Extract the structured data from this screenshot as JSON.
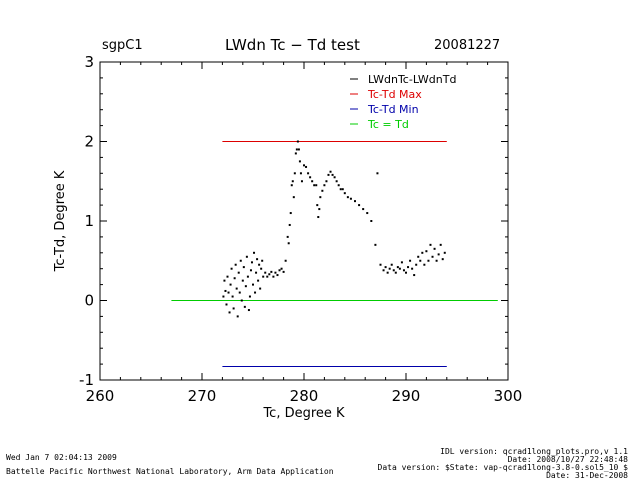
{
  "header": {
    "site": "sgpC1",
    "title": "LWdn Tc − Td test",
    "date": "20081227"
  },
  "footer": {
    "run_time": "Wed Jan  7 02:04:13 2009",
    "institution": "Battelle Pacific Northwest National Laboratory, Arm Data Application",
    "idl_line": "IDL version: qcrad1long_plots.pro,v 1.1",
    "date_line1": "Date: 2008/10/27 22:48:48",
    "data_version": "Data version: $State: vap-qcrad1long-3.8-0.sol5_10 $",
    "date_line2": "Date: 31-Dec-2008"
  },
  "chart_data": {
    "type": "scatter",
    "xlabel": "Tc, Degree K",
    "ylabel": "Tc-Td, Degree K",
    "xlim": [
      260,
      300
    ],
    "ylim": [
      -1,
      3
    ],
    "xticks": [
      260,
      270,
      280,
      290,
      300
    ],
    "yticks": [
      -1,
      0,
      1,
      2,
      3
    ],
    "grid": false,
    "legend_position": "top-right",
    "legend": [
      {
        "label": "LWdnTc-LWdnTd",
        "color": "#000000"
      },
      {
        "label": "Tc-Td Max",
        "color": "#dd0000"
      },
      {
        "label": "Tc-Td Min",
        "color": "#0000aa"
      },
      {
        "label": "Tc = Td",
        "color": "#00cc00"
      }
    ],
    "lines": [
      {
        "name": "Tc-Td Max",
        "color": "#dd0000",
        "x": [
          272,
          294
        ],
        "y": [
          2.0,
          2.0
        ]
      },
      {
        "name": "Tc-Td Min",
        "color": "#0000aa",
        "x": [
          272,
          294
        ],
        "y": [
          -0.83,
          -0.83
        ]
      },
      {
        "name": "Tc = Td",
        "color": "#00cc00",
        "x": [
          267,
          299
        ],
        "y": [
          0.0,
          0.0
        ]
      }
    ],
    "scatter": {
      "name": "LWdnTc-LWdnTd",
      "color": "#000000",
      "points": [
        [
          272.1,
          0.05
        ],
        [
          272.2,
          0.25
        ],
        [
          272.3,
          0.12
        ],
        [
          272.4,
          -0.05
        ],
        [
          272.5,
          0.3
        ],
        [
          272.6,
          0.1
        ],
        [
          272.7,
          -0.15
        ],
        [
          272.8,
          0.2
        ],
        [
          272.9,
          0.4
        ],
        [
          273.0,
          0.05
        ],
        [
          273.1,
          -0.1
        ],
        [
          273.2,
          0.28
        ],
        [
          273.3,
          0.45
        ],
        [
          273.4,
          0.15
        ],
        [
          273.5,
          -0.2
        ],
        [
          273.6,
          0.35
        ],
        [
          273.7,
          0.1
        ],
        [
          273.8,
          0.5
        ],
        [
          273.9,
          0.0
        ],
        [
          274.0,
          0.25
        ],
        [
          274.1,
          0.42
        ],
        [
          274.2,
          -0.08
        ],
        [
          274.3,
          0.18
        ],
        [
          274.4,
          0.55
        ],
        [
          274.5,
          0.3
        ],
        [
          274.6,
          -0.12
        ],
        [
          274.7,
          0.05
        ],
        [
          274.8,
          0.38
        ],
        [
          274.9,
          0.48
        ],
        [
          275.0,
          0.2
        ],
        [
          275.1,
          0.6
        ],
        [
          275.2,
          0.1
        ],
        [
          275.3,
          0.35
        ],
        [
          275.4,
          0.52
        ],
        [
          275.5,
          0.25
        ],
        [
          275.6,
          0.45
        ],
        [
          275.7,
          0.15
        ],
        [
          275.8,
          0.4
        ],
        [
          275.9,
          0.5
        ],
        [
          276.0,
          0.3
        ],
        [
          276.2,
          0.35
        ],
        [
          276.4,
          0.3
        ],
        [
          276.6,
          0.33
        ],
        [
          276.8,
          0.36
        ],
        [
          277.0,
          0.3
        ],
        [
          277.2,
          0.35
        ],
        [
          277.4,
          0.32
        ],
        [
          277.6,
          0.38
        ],
        [
          277.8,
          0.4
        ],
        [
          278.0,
          0.36
        ],
        [
          278.2,
          0.5
        ],
        [
          278.4,
          0.8
        ],
        [
          278.5,
          0.72
        ],
        [
          278.6,
          0.95
        ],
        [
          278.7,
          1.1
        ],
        [
          278.8,
          1.45
        ],
        [
          278.9,
          1.5
        ],
        [
          279.0,
          1.3
        ],
        [
          279.1,
          1.6
        ],
        [
          279.2,
          1.85
        ],
        [
          279.3,
          1.9
        ],
        [
          279.4,
          2.0
        ],
        [
          279.5,
          1.9
        ],
        [
          279.6,
          1.75
        ],
        [
          279.7,
          1.6
        ],
        [
          279.8,
          1.5
        ],
        [
          280.0,
          1.7
        ],
        [
          280.2,
          1.68
        ],
        [
          280.4,
          1.6
        ],
        [
          280.6,
          1.55
        ],
        [
          280.8,
          1.5
        ],
        [
          281.0,
          1.45
        ],
        [
          281.2,
          1.45
        ],
        [
          281.3,
          1.2
        ],
        [
          281.4,
          1.05
        ],
        [
          281.5,
          1.15
        ],
        [
          281.6,
          1.3
        ],
        [
          281.8,
          1.38
        ],
        [
          282.0,
          1.45
        ],
        [
          282.2,
          1.5
        ],
        [
          282.4,
          1.58
        ],
        [
          282.6,
          1.62
        ],
        [
          282.8,
          1.58
        ],
        [
          283.0,
          1.55
        ],
        [
          283.2,
          1.5
        ],
        [
          283.4,
          1.45
        ],
        [
          283.6,
          1.4
        ],
        [
          283.8,
          1.4
        ],
        [
          284.0,
          1.35
        ],
        [
          284.3,
          1.3
        ],
        [
          284.6,
          1.28
        ],
        [
          285.0,
          1.25
        ],
        [
          285.4,
          1.2
        ],
        [
          285.8,
          1.15
        ],
        [
          286.2,
          1.1
        ],
        [
          286.6,
          1.0
        ],
        [
          287.0,
          0.7
        ],
        [
          287.2,
          1.6
        ],
        [
          287.5,
          0.45
        ],
        [
          287.8,
          0.38
        ],
        [
          288.0,
          0.42
        ],
        [
          288.2,
          0.35
        ],
        [
          288.4,
          0.4
        ],
        [
          288.6,
          0.45
        ],
        [
          288.8,
          0.38
        ],
        [
          289.0,
          0.35
        ],
        [
          289.2,
          0.42
        ],
        [
          289.4,
          0.4
        ],
        [
          289.6,
          0.48
        ],
        [
          289.8,
          0.38
        ],
        [
          290.0,
          0.35
        ],
        [
          290.2,
          0.42
        ],
        [
          290.4,
          0.5
        ],
        [
          290.6,
          0.4
        ],
        [
          290.8,
          0.32
        ],
        [
          291.0,
          0.45
        ],
        [
          291.2,
          0.55
        ],
        [
          291.4,
          0.5
        ],
        [
          291.6,
          0.6
        ],
        [
          291.8,
          0.45
        ],
        [
          292.0,
          0.62
        ],
        [
          292.2,
          0.5
        ],
        [
          292.4,
          0.7
        ],
        [
          292.6,
          0.55
        ],
        [
          292.8,
          0.65
        ],
        [
          293.0,
          0.5
        ],
        [
          293.2,
          0.58
        ],
        [
          293.4,
          0.7
        ],
        [
          293.6,
          0.52
        ],
        [
          293.8,
          0.6
        ]
      ]
    }
  }
}
